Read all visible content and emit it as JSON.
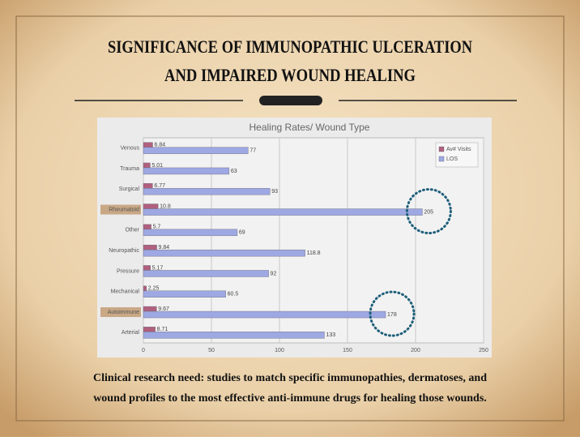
{
  "slide": {
    "title_lines": [
      "SIGNIFICANCE OF IMMUNOPATHIC ULCERATION",
      "AND IMPAIRED WOUND HEALING"
    ],
    "caption_lines": [
      "Clinical research need:  studies to match specific immunopathies, dermatoses, and",
      "wound profiles to the most effective anti-immune drugs for healing those wounds."
    ]
  },
  "chart_data": {
    "type": "hbar",
    "title": "Healing Rates/ Wound Type",
    "categories": [
      "Venous",
      "Trauma",
      "Surgical",
      "Rheumatoid",
      "Other",
      "Neuropathic",
      "Pressure",
      "Mechanical",
      "Autoimmune",
      "Arterial"
    ],
    "series": [
      {
        "name": "Av# Visits",
        "color": "#b0607e",
        "values": [
          6.84,
          5.01,
          6.77,
          10.8,
          5.7,
          9.84,
          5.17,
          2.25,
          9.67,
          8.71
        ]
      },
      {
        "name": "LOS",
        "color": "#9ea8e2",
        "values": [
          77,
          63,
          93,
          205,
          69,
          118.8,
          92,
          60.5,
          178,
          133
        ]
      }
    ],
    "xlim": [
      0,
      250
    ],
    "xticks": [
      0,
      50,
      100,
      150,
      200,
      250
    ],
    "grid": true,
    "legend": "top-right",
    "highlight": [
      3,
      8
    ]
  }
}
